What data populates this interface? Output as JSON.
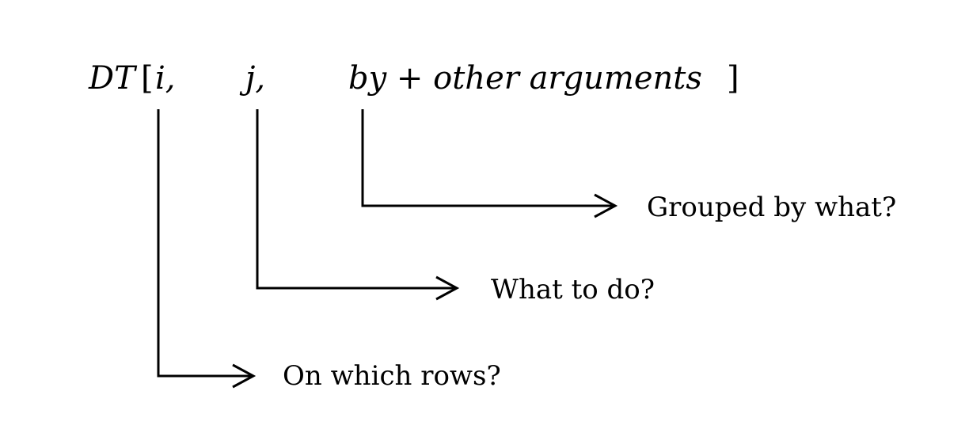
{
  "expression": {
    "dt": "DT",
    "open_bracket": "[",
    "i": "i,",
    "j": "j,",
    "by": "by + other arguments",
    "close_bracket": "]"
  },
  "labels": {
    "i": "On which rows?",
    "j": "What to do?",
    "by": "Grouped by what?"
  }
}
